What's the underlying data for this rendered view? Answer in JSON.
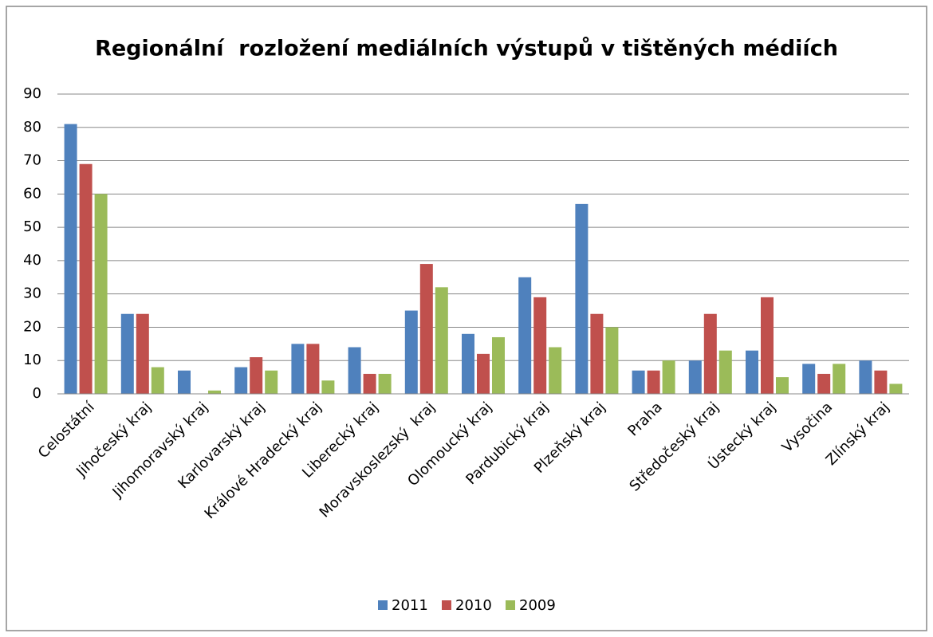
{
  "chart_data": {
    "type": "bar",
    "title": "Regionální  rozložení mediálních výstupů v tištěných médiích",
    "categories": [
      "Celostátní",
      "Jihočeský kraj",
      "Jihomoravský kraj",
      "Karlovarský kraj",
      "Králové Hradecký kraj",
      "Liberecký kraj",
      "Moravskoslezský  kraj",
      "Olomoucký kraj",
      "Pardubický kraj",
      "Plzeňský kraj",
      "Praha",
      "Středočeský kraj",
      "Ústecký kraj",
      "Vysočina",
      "Zlínský kraj"
    ],
    "series": [
      {
        "name": "2011",
        "color": "#4f81bd",
        "values": [
          81,
          24,
          7,
          8,
          15,
          14,
          25,
          18,
          35,
          57,
          7,
          10,
          13,
          9,
          10
        ]
      },
      {
        "name": "2010",
        "color": "#c0504d",
        "values": [
          69,
          24,
          0,
          11,
          15,
          6,
          39,
          12,
          29,
          24,
          7,
          24,
          29,
          6,
          7
        ]
      },
      {
        "name": "2009",
        "color": "#9bbb59",
        "values": [
          60,
          8,
          1,
          7,
          4,
          6,
          32,
          17,
          14,
          20,
          10,
          13,
          5,
          9,
          3
        ]
      }
    ],
    "ylim": [
      0,
      90
    ],
    "yticks": [
      0,
      10,
      20,
      30,
      40,
      50,
      60,
      70,
      80,
      90
    ],
    "grid": true,
    "legend": "bottom"
  }
}
